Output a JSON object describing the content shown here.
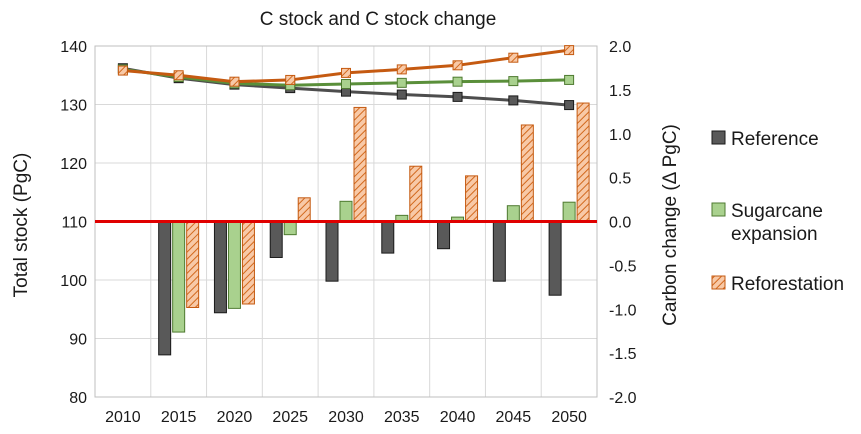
{
  "chart_data": {
    "type": "bar+line",
    "title": "C stock and C stock change",
    "categories": [
      "2010",
      "2015",
      "2020",
      "2025",
      "2030",
      "2035",
      "2040",
      "2045",
      "2050"
    ],
    "left_axis": {
      "label": "Total stock (PgC)",
      "ylim": [
        80,
        140
      ],
      "ticks": [
        "80",
        "90",
        "100",
        "110",
        "120",
        "130",
        "140"
      ]
    },
    "right_axis": {
      "label": "Carbon change (Δ PgC)",
      "ylim": [
        -2.0,
        2.0
      ],
      "ticks": [
        "-2.0",
        "-1.5",
        "-1.0",
        "-0.5",
        "0.0",
        "0.5",
        "1.0",
        "1.5",
        "2.0"
      ]
    },
    "grid": true,
    "legend_position": "right",
    "series": [
      {
        "name": "Reference",
        "color": "#595959",
        "pattern": "solid",
        "bar_values": [
          null,
          -1.52,
          -1.04,
          -0.41,
          -0.68,
          -0.36,
          -0.31,
          -0.68,
          -0.84
        ],
        "line_values": [
          136.2,
          134.5,
          133.4,
          132.8,
          132.2,
          131.7,
          131.3,
          130.7,
          129.9
        ]
      },
      {
        "name": "Sugarcane expansion",
        "color": "#70ad47",
        "fill": "#a9d18e",
        "pattern": "light",
        "bar_values": [
          null,
          -1.26,
          -0.99,
          -0.15,
          0.23,
          0.07,
          0.05,
          0.18,
          0.22
        ],
        "line_values": [
          136.0,
          134.7,
          133.6,
          133.3,
          133.5,
          133.7,
          133.9,
          134.0,
          134.2
        ]
      },
      {
        "name": "Reforestation",
        "color": "#c55a11",
        "fill": "#f4b183",
        "pattern": "hatched",
        "bar_values": [
          null,
          -0.98,
          -0.94,
          0.27,
          1.3,
          0.63,
          0.52,
          1.1,
          1.35
        ],
        "line_values": [
          135.8,
          135.0,
          133.9,
          134.2,
          135.4,
          136.0,
          136.7,
          138.0,
          139.3
        ]
      }
    ],
    "zero_line_color": "#e00000"
  }
}
